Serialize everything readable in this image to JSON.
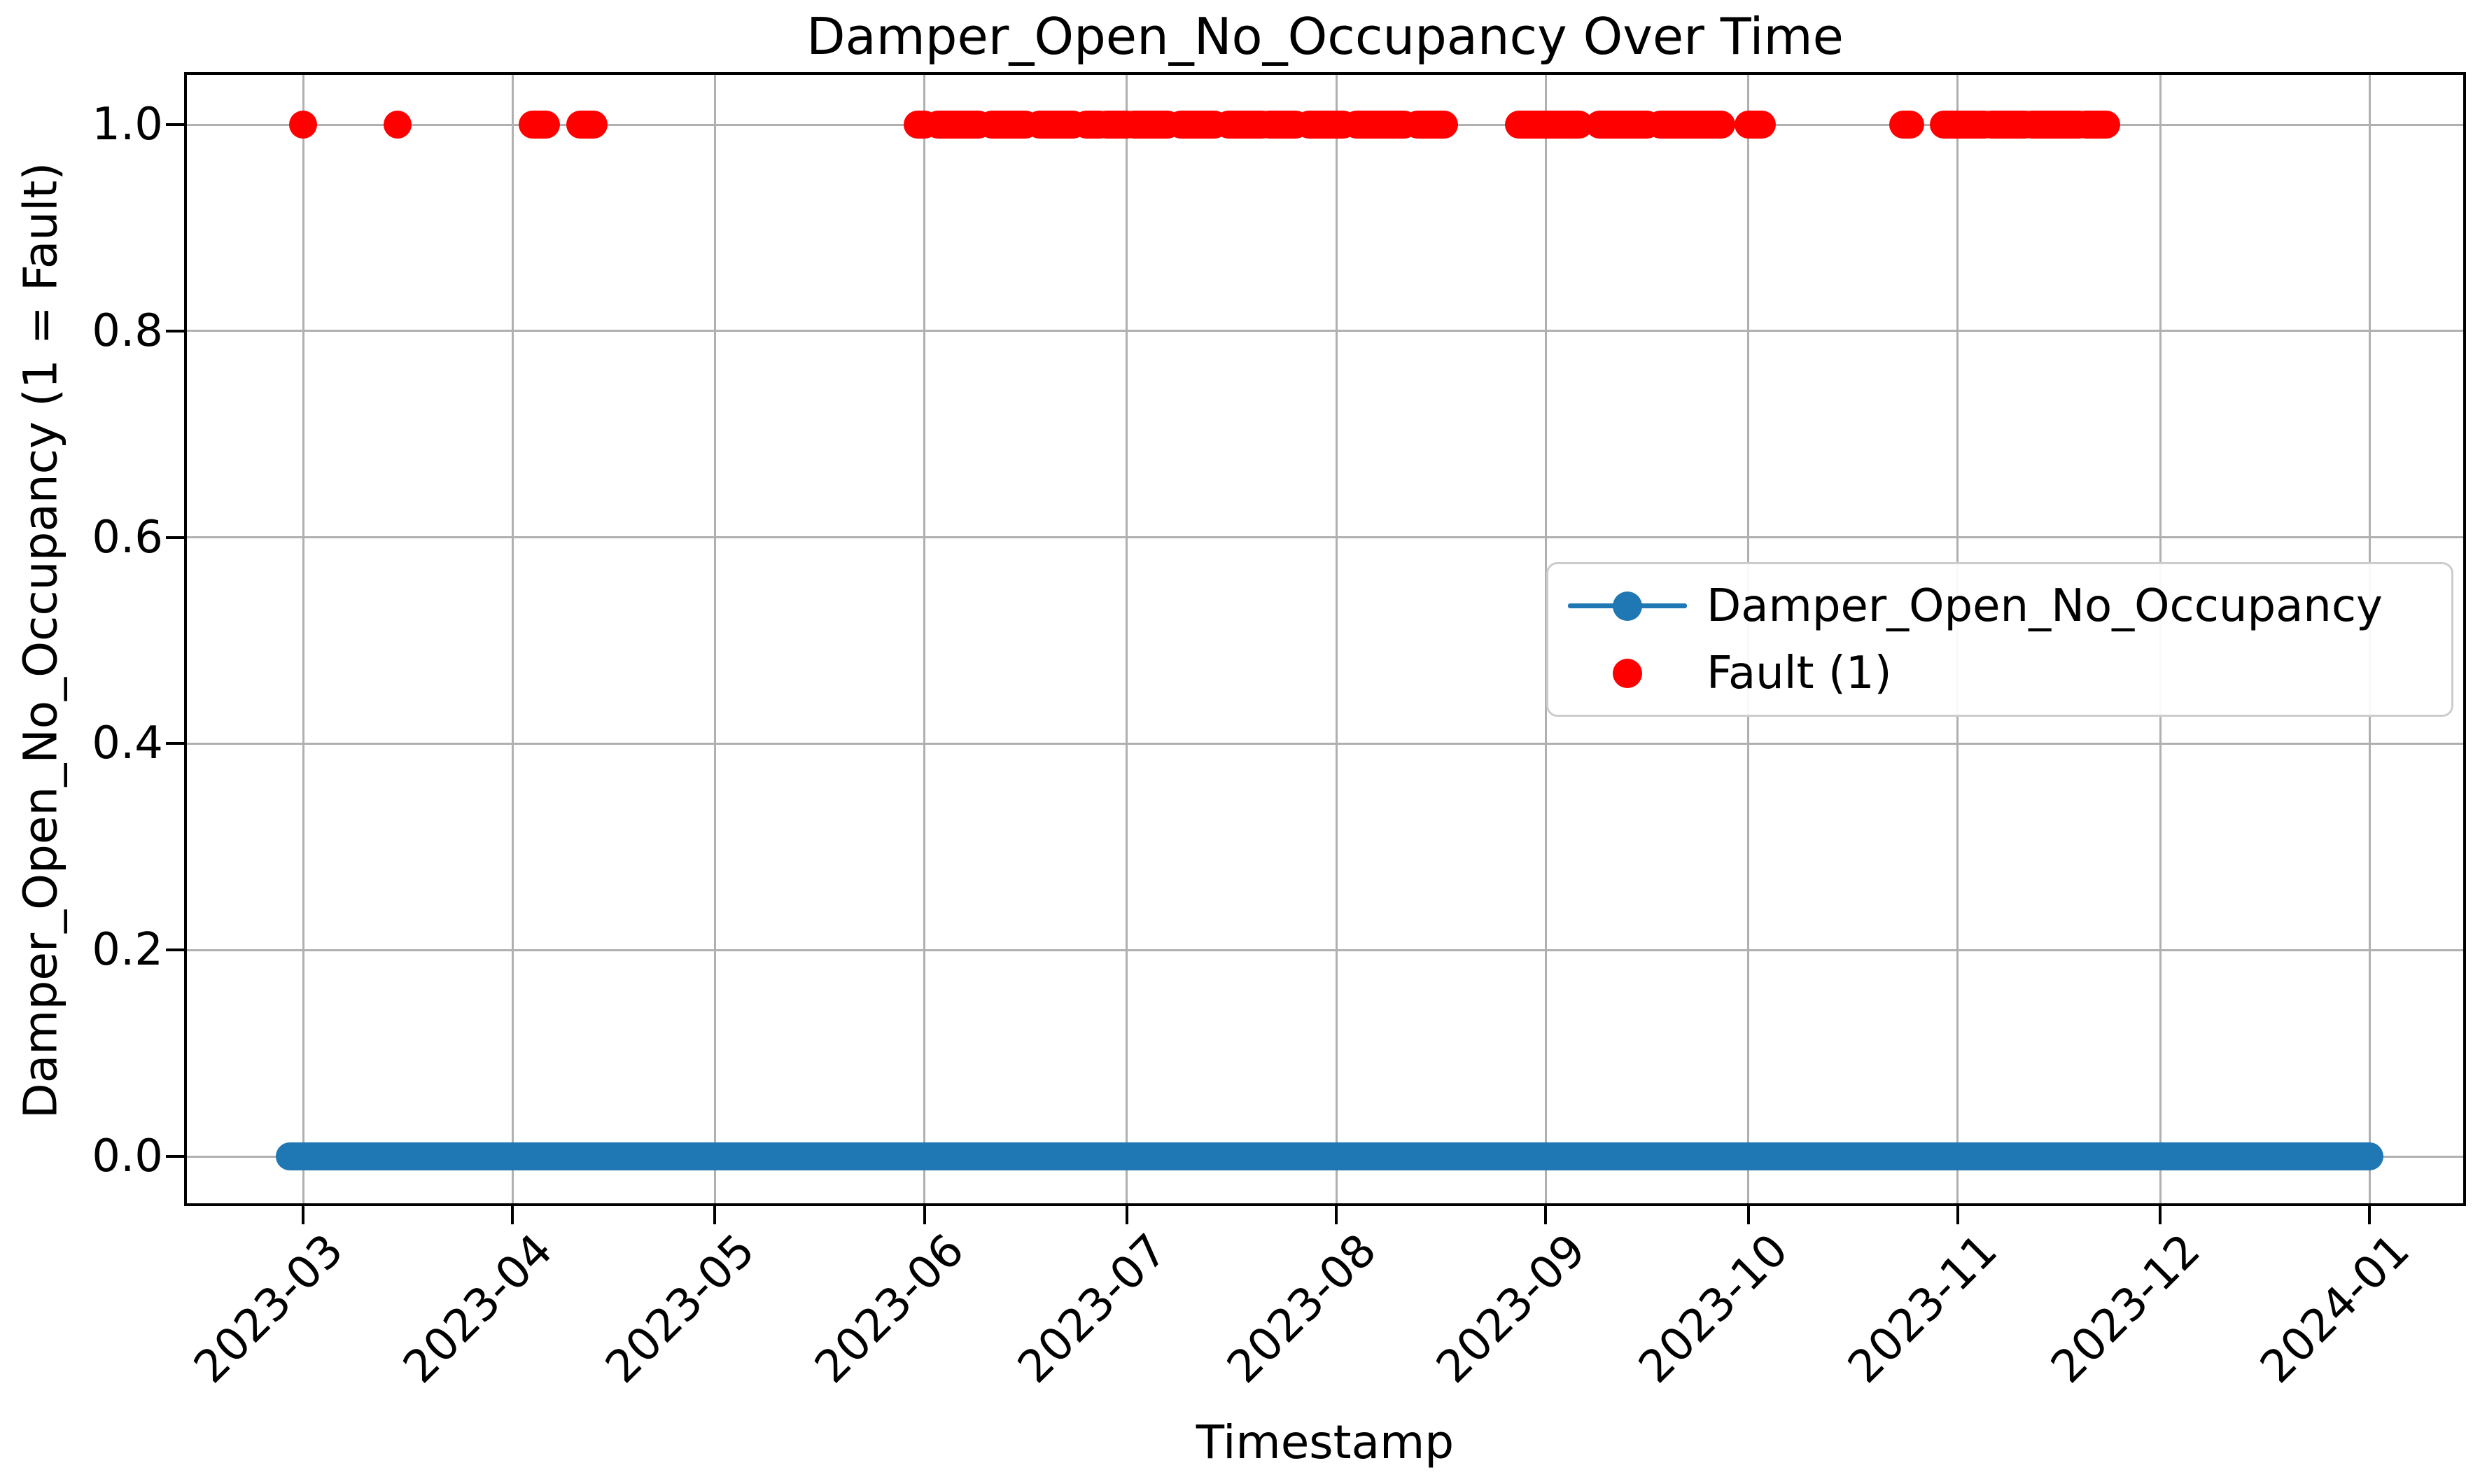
{
  "chart": {
    "title": "Damper_Open_No_Occupancy Over Time",
    "xlabel": "Timestamp",
    "ylabel": "Damper_Open_No_Occupancy (1 = Fault)",
    "legend": {
      "items": [
        {
          "label": "Damper_Open_No_Occupancy",
          "marker": "line-with-dot",
          "color": "#1f77b4"
        },
        {
          "label": "Fault (1)",
          "marker": "dot",
          "color": "#ff0000"
        }
      ]
    },
    "colors": {
      "line_series": "#1f77b4",
      "fault_series": "#ff0000",
      "grid": "#b0b0b0",
      "axis": "#000000",
      "background": "#ffffff",
      "legend_border": "#cccccc"
    }
  },
  "chart_data": {
    "type": "line",
    "title": "Damper_Open_No_Occupancy Over Time",
    "xlabel": "Timestamp",
    "ylabel": "Damper_Open_No_Occupancy (1 = Fault)",
    "x_ticks": [
      "2023-03",
      "2023-04",
      "2023-05",
      "2023-06",
      "2023-07",
      "2023-08",
      "2023-09",
      "2023-10",
      "2023-11",
      "2023-12",
      "2024-01"
    ],
    "y_ticks": [
      "0.0",
      "0.2",
      "0.4",
      "0.6",
      "0.8",
      "1.0"
    ],
    "ylim": [
      -0.05,
      1.05
    ],
    "grid": true,
    "legend_position": "center right",
    "series": [
      {
        "name": "Damper_Open_No_Occupancy",
        "style": "line-with-markers",
        "color": "#1f77b4",
        "value": 0,
        "start": "2023-02-27",
        "end": "2024-01-01"
      },
      {
        "name": "Fault (1)",
        "style": "scatter",
        "color": "#ff0000",
        "value": 1,
        "segments": [
          [
            "2023-03-01",
            "2023-03-01"
          ],
          [
            "2023-03-15",
            "2023-03-15"
          ],
          [
            "2023-04-04",
            "2023-04-06"
          ],
          [
            "2023-04-11",
            "2023-04-13"
          ],
          [
            "2023-05-31",
            "2023-06-01"
          ],
          [
            "2023-06-03",
            "2023-06-09"
          ],
          [
            "2023-06-11",
            "2023-06-16"
          ],
          [
            "2023-06-18",
            "2023-06-23"
          ],
          [
            "2023-06-25",
            "2023-06-27"
          ],
          [
            "2023-06-28",
            "2023-07-01"
          ],
          [
            "2023-07-02",
            "2023-07-07"
          ],
          [
            "2023-07-09",
            "2023-07-14"
          ],
          [
            "2023-07-16",
            "2023-07-21"
          ],
          [
            "2023-07-22",
            "2023-07-26"
          ],
          [
            "2023-07-28",
            "2023-08-02"
          ],
          [
            "2023-08-04",
            "2023-08-11"
          ],
          [
            "2023-08-13",
            "2023-08-17"
          ],
          [
            "2023-08-28",
            "2023-09-06"
          ],
          [
            "2023-09-09",
            "2023-09-16"
          ],
          [
            "2023-09-18",
            "2023-09-27"
          ],
          [
            "2023-10-01",
            "2023-10-03"
          ],
          [
            "2023-10-24",
            "2023-10-25"
          ],
          [
            "2023-10-30",
            "2023-11-05"
          ],
          [
            "2023-11-06",
            "2023-11-11"
          ],
          [
            "2023-11-12",
            "2023-11-19"
          ],
          [
            "2023-11-20",
            "2023-11-23"
          ]
        ]
      }
    ]
  }
}
